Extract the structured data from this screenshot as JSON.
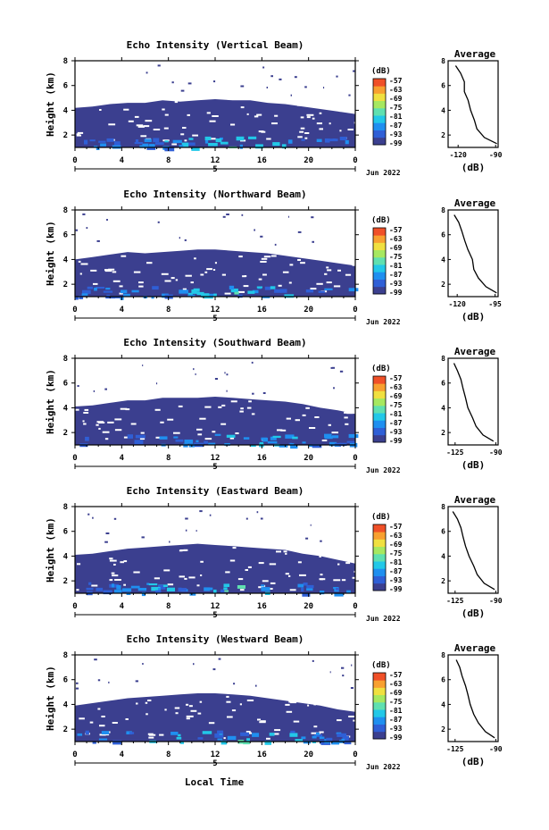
{
  "common": {
    "x_ticks": [
      "0",
      "4",
      "8",
      "12",
      "16",
      "20",
      "0"
    ],
    "date_label": "5",
    "month_year": "Jun 2022",
    "y_label": "Height (km)",
    "y_ticks": [
      "2",
      "4",
      "6",
      "8"
    ],
    "colorbar_unit": "(dB)",
    "colorbar_ticks": [
      "-57",
      "-63",
      "-69",
      "-75",
      "-81",
      "-87",
      "-93",
      "-99"
    ],
    "colorbar_colors": [
      "#3b3f8f",
      "#2f5fd6",
      "#1f8ff0",
      "#22c8e8",
      "#5fe0b0",
      "#a6e860",
      "#f0e040",
      "#f8a030",
      "#f05028"
    ],
    "avg_title": "Average",
    "avg_xlabel": "(dB)",
    "x_axis_label": "Local Time"
  },
  "chart_data": [
    {
      "type": "heatmap",
      "title": "Echo Intensity (Vertical Beam)",
      "xlim": [
        0,
        24
      ],
      "ylim": [
        1,
        8
      ],
      "cloud_top_km": [
        4.2,
        4.3,
        4.5,
        4.6,
        4.6,
        4.8,
        4.7,
        4.8,
        4.9,
        4.8,
        4.8,
        4.6,
        4.5,
        4.3,
        4.1,
        3.9,
        3.7
      ],
      "avg_profile": {
        "type": "line",
        "title": "Average",
        "xlabel": "(dB)",
        "x_ticks": [
          "-120",
          "-90"
        ],
        "xlim": [
          -128,
          -88
        ],
        "ylim": [
          1,
          8
        ],
        "height_km": [
          1.3,
          1.8,
          2.5,
          3.2,
          4.0,
          4.8,
          5.5,
          6.3,
          7.0,
          7.6
        ],
        "db": [
          -89,
          -99,
          -105,
          -107,
          -110,
          -112,
          -115,
          -115,
          -118,
          -122
        ]
      }
    },
    {
      "type": "heatmap",
      "title": "Echo Intensity (Northward Beam)",
      "xlim": [
        0,
        24
      ],
      "ylim": [
        1,
        8
      ],
      "cloud_top_km": [
        4.0,
        4.2,
        4.4,
        4.6,
        4.5,
        4.6,
        4.7,
        4.8,
        4.8,
        4.7,
        4.6,
        4.5,
        4.3,
        4.1,
        3.9,
        3.7,
        3.5
      ],
      "avg_profile": {
        "type": "line",
        "title": "Average",
        "xlabel": "(dB)",
        "x_ticks": [
          "-120",
          "-95"
        ],
        "xlim": [
          -126,
          -93
        ],
        "ylim": [
          1,
          8
        ],
        "height_km": [
          1.3,
          1.8,
          2.5,
          3.2,
          4.0,
          4.8,
          5.5,
          6.3,
          7.0,
          7.6
        ],
        "db": [
          -94,
          -101,
          -106,
          -109,
          -110,
          -113,
          -115,
          -117,
          -119,
          -122
        ]
      }
    },
    {
      "type": "heatmap",
      "title": "Echo Intensity (Southward Beam)",
      "xlim": [
        0,
        24
      ],
      "ylim": [
        1,
        8
      ],
      "cloud_top_km": [
        4.1,
        4.2,
        4.4,
        4.6,
        4.6,
        4.8,
        4.8,
        4.8,
        4.9,
        4.8,
        4.7,
        4.6,
        4.5,
        4.3,
        4.0,
        3.8,
        3.5
      ],
      "avg_profile": {
        "type": "line",
        "title": "Average",
        "xlabel": "(dB)",
        "x_ticks": [
          "-125",
          "-90"
        ],
        "xlim": [
          -131,
          -88
        ],
        "ylim": [
          1,
          8
        ],
        "height_km": [
          1.3,
          1.8,
          2.5,
          3.2,
          4.0,
          4.8,
          5.5,
          6.3,
          7.0,
          7.6
        ],
        "db": [
          -92,
          -101,
          -107,
          -110,
          -114,
          -116,
          -118,
          -120,
          -123,
          -126
        ]
      }
    },
    {
      "type": "heatmap",
      "title": "Echo Intensity (Eastward Beam)",
      "xlim": [
        0,
        24
      ],
      "ylim": [
        1,
        8
      ],
      "cloud_top_km": [
        4.1,
        4.2,
        4.4,
        4.6,
        4.7,
        4.8,
        4.9,
        5.0,
        4.9,
        4.8,
        4.7,
        4.6,
        4.5,
        4.2,
        4.0,
        3.7,
        3.4
      ],
      "avg_profile": {
        "type": "line",
        "title": "Average",
        "xlabel": "(dB)",
        "x_ticks": [
          "-125",
          "-90"
        ],
        "xlim": [
          -131,
          -88
        ],
        "ylim": [
          1,
          8
        ],
        "height_km": [
          1.3,
          1.8,
          2.5,
          3.2,
          4.0,
          4.8,
          5.5,
          6.3,
          7.0,
          7.6
        ],
        "db": [
          -91,
          -100,
          -106,
          -109,
          -113,
          -116,
          -118,
          -120,
          -123,
          -127
        ]
      }
    },
    {
      "type": "heatmap",
      "title": "Echo Intensity (Westward Beam)",
      "xlim": [
        0,
        24
      ],
      "ylim": [
        1,
        8
      ],
      "cloud_top_km": [
        3.9,
        4.1,
        4.3,
        4.5,
        4.6,
        4.7,
        4.8,
        4.9,
        4.9,
        4.8,
        4.7,
        4.5,
        4.3,
        4.1,
        3.9,
        3.6,
        3.4
      ],
      "avg_profile": {
        "type": "line",
        "title": "Average",
        "xlabel": "(dB)",
        "x_ticks": [
          "-125",
          "-90"
        ],
        "xlim": [
          -131,
          -88
        ],
        "ylim": [
          1,
          8
        ],
        "height_km": [
          1.3,
          1.8,
          2.5,
          3.2,
          4.0,
          4.8,
          5.5,
          6.3,
          7.0,
          7.6
        ],
        "db": [
          -91,
          -99,
          -105,
          -109,
          -112,
          -114,
          -116,
          -119,
          -121,
          -124
        ]
      }
    }
  ]
}
